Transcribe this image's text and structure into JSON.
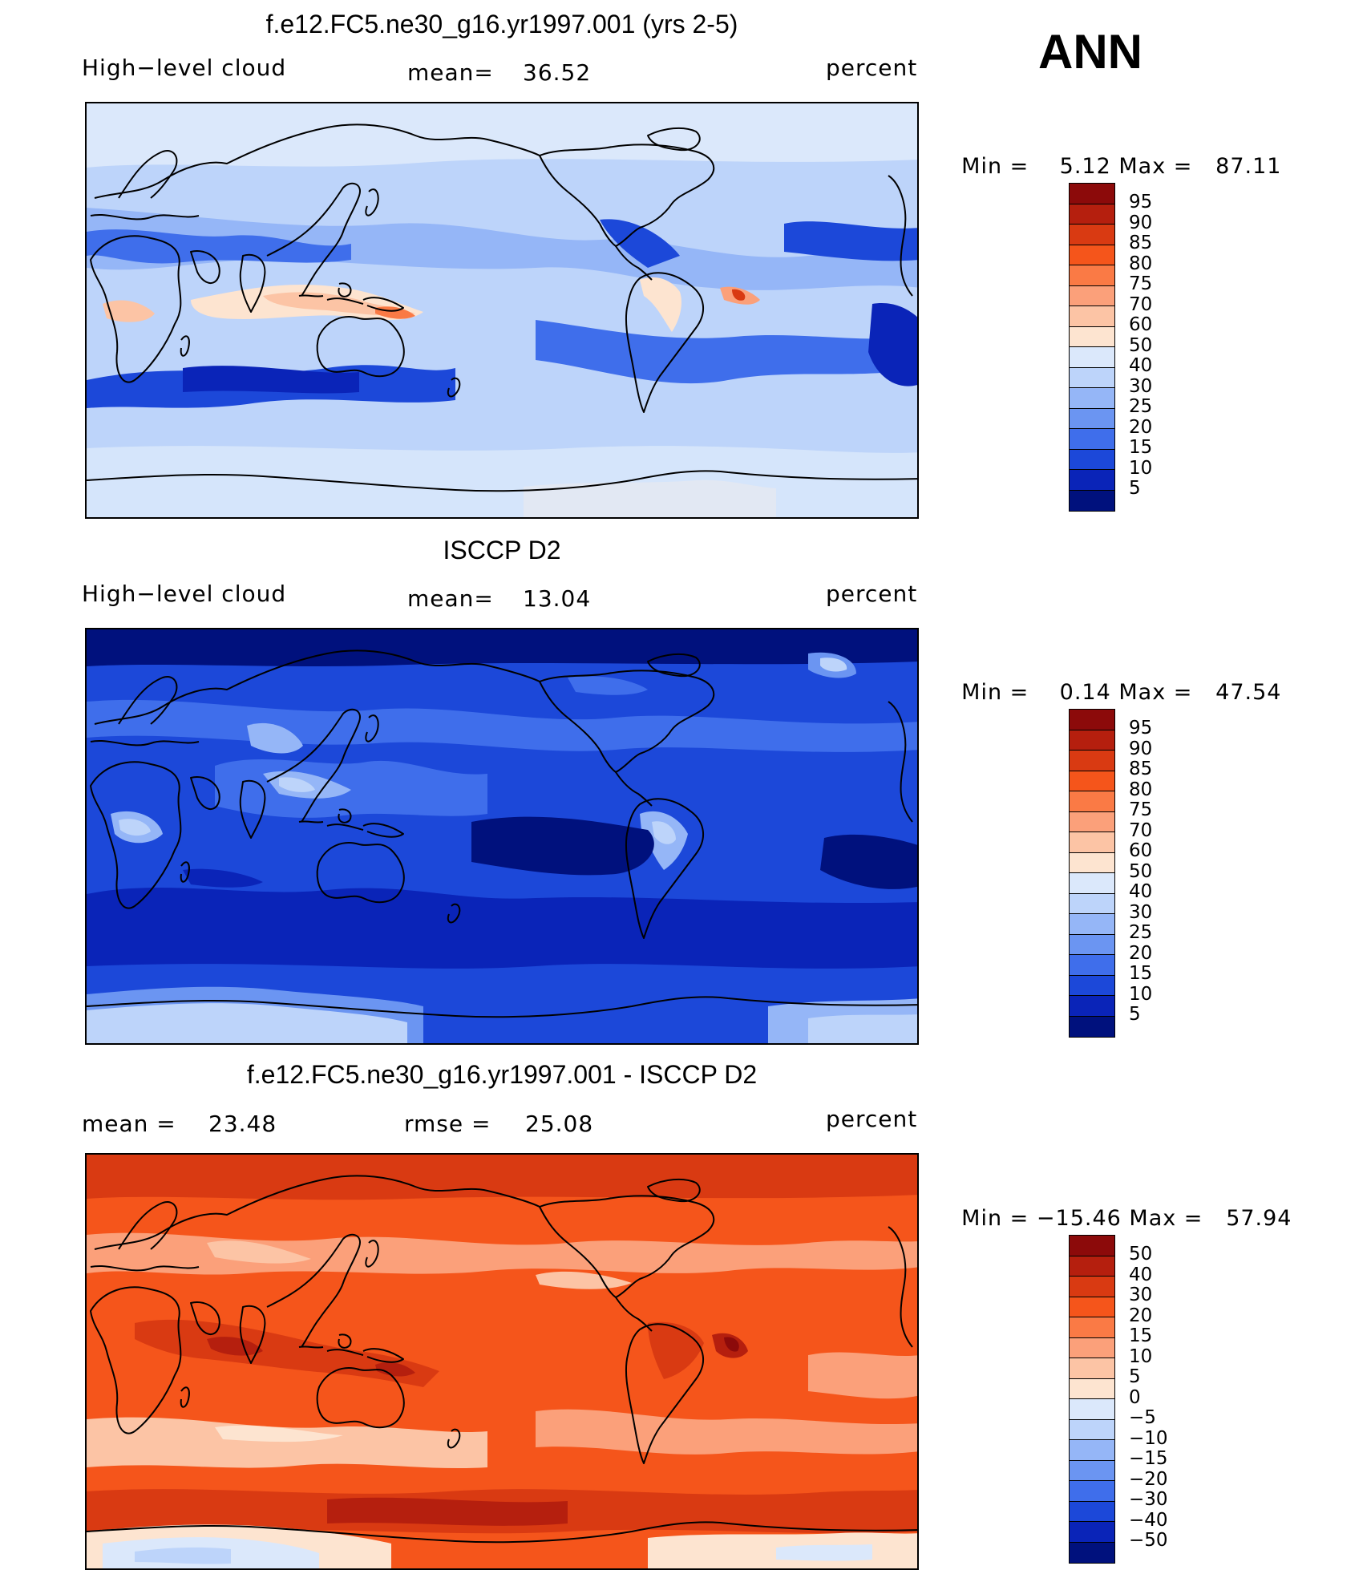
{
  "season": "ANN",
  "panels": [
    {
      "title": "f.e12.FC5.ne30_g16.yr1997.001 (yrs 2-5)",
      "left_label": "High−level cloud",
      "stat_label": "mean=",
      "stat_value": "36.52",
      "units": "percent",
      "min_label": "Min =",
      "min_value": "5.12",
      "max_label": "Max =",
      "max_value": "87.11",
      "colorbar": {
        "labels": [
          "95",
          "90",
          "85",
          "80",
          "75",
          "70",
          "60",
          "50",
          "40",
          "30",
          "25",
          "20",
          "15",
          "10",
          "5"
        ],
        "colors": [
          "#8c0a0a",
          "#b51f0e",
          "#d93a12",
          "#f5551b",
          "#fa7a45",
          "#fba07a",
          "#fcc4a5",
          "#fde4d0",
          "#dbe8fb",
          "#bdd4fa",
          "#95b6f7",
          "#6b95f2",
          "#3f6eeb",
          "#1c48d9",
          "#0a24b8",
          "#00117d"
        ]
      }
    },
    {
      "title": "ISCCP D2",
      "left_label": "High−level cloud",
      "stat_label": "mean=",
      "stat_value": "13.04",
      "units": "percent",
      "min_label": "Min =",
      "min_value": "0.14",
      "max_label": "Max =",
      "max_value": "47.54",
      "colorbar": {
        "labels": [
          "95",
          "90",
          "85",
          "80",
          "75",
          "70",
          "60",
          "50",
          "40",
          "30",
          "25",
          "20",
          "15",
          "10",
          "5"
        ],
        "colors": [
          "#8c0a0a",
          "#b51f0e",
          "#d93a12",
          "#f5551b",
          "#fa7a45",
          "#fba07a",
          "#fcc4a5",
          "#fde4d0",
          "#dbe8fb",
          "#bdd4fa",
          "#95b6f7",
          "#6b95f2",
          "#3f6eeb",
          "#1c48d9",
          "#0a24b8",
          "#00117d"
        ]
      }
    },
    {
      "title": "f.e12.FC5.ne30_g16.yr1997.001 - ISCCP D2",
      "left_label": "mean =",
      "left_value": "23.48",
      "stat_label": "rmse =",
      "stat_value": "25.08",
      "units": "percent",
      "min_label": "Min =",
      "min_value": "−15.46",
      "max_label": "Max =",
      "max_value": "57.94",
      "colorbar": {
        "labels": [
          "50",
          "40",
          "30",
          "20",
          "15",
          "10",
          "5",
          "0",
          "−5",
          "−10",
          "−15",
          "−20",
          "−30",
          "−40",
          "−50"
        ],
        "colors": [
          "#8c0a0a",
          "#b51f0e",
          "#d93a12",
          "#f5551b",
          "#fa7a45",
          "#fba07a",
          "#fcc4a5",
          "#fde4d0",
          "#dbe8fb",
          "#bdd4fa",
          "#95b6f7",
          "#6b95f2",
          "#3f6eeb",
          "#1c48d9",
          "#0a24b8",
          "#00117d"
        ]
      }
    }
  ]
}
